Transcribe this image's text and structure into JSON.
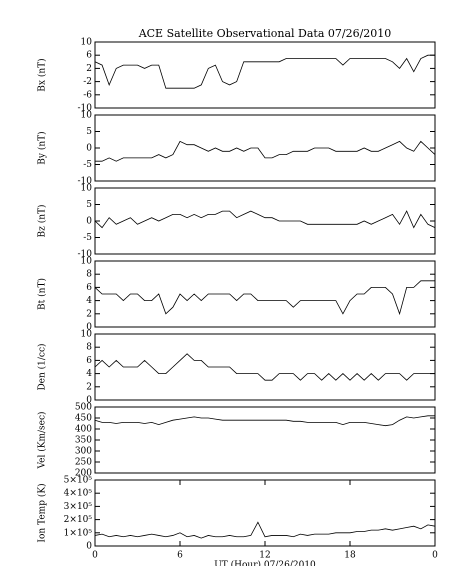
{
  "chart_data": [
    {
      "type": "line",
      "title": "ACE Satellite Observational Data   07/26/2010",
      "ylabel": "Bx (nT)",
      "color": "#000000",
      "xlim": [
        0,
        24
      ],
      "ylim": [
        -10,
        10
      ],
      "yticks": [
        -10,
        -6,
        -2,
        2,
        6,
        10
      ],
      "x": [
        0,
        0.5,
        1,
        1.5,
        2,
        2.5,
        3,
        3.5,
        4,
        4.5,
        5,
        5.5,
        6,
        6.5,
        7,
        7.5,
        8,
        8.5,
        9,
        9.5,
        10,
        10.5,
        11,
        11.5,
        12,
        12.5,
        13,
        13.5,
        14,
        14.5,
        15,
        15.5,
        16,
        16.5,
        17,
        17.5,
        18,
        18.5,
        19,
        19.5,
        20,
        20.5,
        21,
        21.5,
        22,
        22.5,
        23,
        23.5,
        24
      ],
      "values": [
        4,
        3,
        -3,
        2,
        3,
        3,
        3,
        2,
        3,
        3,
        -4,
        -4,
        -4,
        -4,
        -4,
        -3,
        2,
        3,
        -2,
        -3,
        -2,
        4,
        4,
        4,
        4,
        4,
        4,
        5,
        5,
        5,
        5,
        5,
        5,
        5,
        5,
        3,
        5,
        5,
        5,
        5,
        5,
        5,
        4,
        2,
        5,
        1,
        5,
        6,
        6
      ]
    },
    {
      "type": "line",
      "ylabel": "By (nT)",
      "color": "#000000",
      "xlim": [
        0,
        24
      ],
      "ylim": [
        -10,
        10
      ],
      "yticks": [
        -10,
        -5,
        0,
        5,
        10
      ],
      "x": [
        0,
        0.5,
        1,
        1.5,
        2,
        2.5,
        3,
        3.5,
        4,
        4.5,
        5,
        5.5,
        6,
        6.5,
        7,
        7.5,
        8,
        8.5,
        9,
        9.5,
        10,
        10.5,
        11,
        11.5,
        12,
        12.5,
        13,
        13.5,
        14,
        14.5,
        15,
        15.5,
        16,
        16.5,
        17,
        17.5,
        18,
        18.5,
        19,
        19.5,
        20,
        20.5,
        21,
        21.5,
        22,
        22.5,
        23,
        23.5,
        24
      ],
      "values": [
        -4,
        -4,
        -3,
        -4,
        -3,
        -3,
        -3,
        -3,
        -3,
        -2,
        -3,
        -2,
        2,
        1,
        1,
        0,
        -1,
        0,
        -1,
        -1,
        0,
        -1,
        0,
        0,
        -3,
        -3,
        -2,
        -2,
        -1,
        -1,
        -1,
        0,
        0,
        0,
        -1,
        -1,
        -1,
        -1,
        0,
        -1,
        -1,
        0,
        1,
        2,
        0,
        -1,
        2,
        0,
        -2
      ]
    },
    {
      "type": "line",
      "ylabel": "Bz (nT)",
      "color": "#000000",
      "xlim": [
        0,
        24
      ],
      "ylim": [
        -10,
        10
      ],
      "yticks": [
        -10,
        -5,
        0,
        5,
        10
      ],
      "x": [
        0,
        0.5,
        1,
        1.5,
        2,
        2.5,
        3,
        3.5,
        4,
        4.5,
        5,
        5.5,
        6,
        6.5,
        7,
        7.5,
        8,
        8.5,
        9,
        9.5,
        10,
        10.5,
        11,
        11.5,
        12,
        12.5,
        13,
        13.5,
        14,
        14.5,
        15,
        15.5,
        16,
        16.5,
        17,
        17.5,
        18,
        18.5,
        19,
        19.5,
        20,
        20.5,
        21,
        21.5,
        22,
        22.5,
        23,
        23.5,
        24
      ],
      "values": [
        0,
        -2,
        1,
        -1,
        0,
        1,
        -1,
        0,
        1,
        0,
        1,
        2,
        2,
        1,
        2,
        1,
        2,
        2,
        3,
        3,
        1,
        2,
        3,
        2,
        1,
        1,
        0,
        0,
        0,
        0,
        -1,
        -1,
        -1,
        -1,
        -1,
        -1,
        -1,
        -1,
        0,
        -1,
        0,
        1,
        2,
        -1,
        3,
        -2,
        2,
        -1,
        -2
      ]
    },
    {
      "type": "line",
      "ylabel": "Bt (nT)",
      "color": "#000000",
      "xlim": [
        0,
        24
      ],
      "ylim": [
        0,
        10
      ],
      "yticks": [
        0,
        2,
        4,
        6,
        8,
        10
      ],
      "x": [
        0,
        0.5,
        1,
        1.5,
        2,
        2.5,
        3,
        3.5,
        4,
        4.5,
        5,
        5.5,
        6,
        6.5,
        7,
        7.5,
        8,
        8.5,
        9,
        9.5,
        10,
        10.5,
        11,
        11.5,
        12,
        12.5,
        13,
        13.5,
        14,
        14.5,
        15,
        15.5,
        16,
        16.5,
        17,
        17.5,
        18,
        18.5,
        19,
        19.5,
        20,
        20.5,
        21,
        21.5,
        22,
        22.5,
        23,
        23.5,
        24
      ],
      "values": [
        6,
        5,
        5,
        5,
        4,
        5,
        5,
        4,
        4,
        5,
        2,
        3,
        5,
        4,
        5,
        4,
        5,
        5,
        5,
        5,
        4,
        5,
        5,
        4,
        4,
        4,
        4,
        4,
        3,
        4,
        4,
        4,
        4,
        4,
        4,
        2,
        4,
        5,
        5,
        6,
        6,
        6,
        5,
        2,
        6,
        6,
        7,
        7,
        7
      ]
    },
    {
      "type": "line",
      "ylabel": "Den (1/cc)",
      "color": "#000000",
      "xlim": [
        0,
        24
      ],
      "ylim": [
        0,
        10
      ],
      "yticks": [
        0,
        2,
        4,
        6,
        8,
        10
      ],
      "x": [
        0,
        0.5,
        1,
        1.5,
        2,
        2.5,
        3,
        3.5,
        4,
        4.5,
        5,
        5.5,
        6,
        6.5,
        7,
        7.5,
        8,
        8.5,
        9,
        9.5,
        10,
        10.5,
        11,
        11.5,
        12,
        12.5,
        13,
        13.5,
        14,
        14.5,
        15,
        15.5,
        16,
        16.5,
        17,
        17.5,
        18,
        18.5,
        19,
        19.5,
        20,
        20.5,
        21,
        21.5,
        22,
        22.5,
        23,
        23.5,
        24
      ],
      "values": [
        5,
        6,
        5,
        6,
        5,
        5,
        5,
        6,
        5,
        4,
        4,
        5,
        6,
        7,
        6,
        6,
        5,
        5,
        5,
        5,
        4,
        4,
        4,
        4,
        3,
        3,
        4,
        4,
        4,
        3,
        4,
        4,
        3,
        4,
        3,
        4,
        3,
        4,
        3,
        4,
        3,
        4,
        4,
        4,
        3,
        4,
        4,
        4,
        4
      ]
    },
    {
      "type": "line",
      "ylabel": "Vel (Km/sec)",
      "color": "#000000",
      "xlim": [
        0,
        24
      ],
      "ylim": [
        200,
        500
      ],
      "yticks": [
        200,
        250,
        300,
        350,
        400,
        450,
        500
      ],
      "x": [
        0,
        0.5,
        1,
        1.5,
        2,
        2.5,
        3,
        3.5,
        4,
        4.5,
        5,
        5.5,
        6,
        6.5,
        7,
        7.5,
        8,
        8.5,
        9,
        9.5,
        10,
        10.5,
        11,
        11.5,
        12,
        12.5,
        13,
        13.5,
        14,
        14.5,
        15,
        15.5,
        16,
        16.5,
        17,
        17.5,
        18,
        18.5,
        19,
        19.5,
        20,
        20.5,
        21,
        21.5,
        22,
        22.5,
        23,
        23.5,
        24
      ],
      "values": [
        440,
        430,
        430,
        425,
        430,
        430,
        430,
        425,
        430,
        420,
        430,
        440,
        445,
        450,
        455,
        450,
        450,
        445,
        440,
        440,
        440,
        440,
        440,
        440,
        440,
        440,
        440,
        440,
        435,
        435,
        430,
        430,
        430,
        430,
        430,
        420,
        430,
        430,
        430,
        425,
        420,
        415,
        420,
        440,
        455,
        450,
        455,
        460,
        460
      ]
    },
    {
      "type": "line",
      "ylabel": "Ion Temp (K)",
      "xlabel": "UT (Hour)   07/26/2010",
      "color": "#000000",
      "xlim": [
        0,
        24
      ],
      "ylim": [
        0,
        500000
      ],
      "yticks": [
        0,
        {
          "value": 100000,
          "label": "1×10⁵"
        },
        {
          "value": 200000,
          "label": "2×10⁵"
        },
        {
          "value": 300000,
          "label": "3×10⁵"
        },
        {
          "value": 400000,
          "label": "4×10⁵"
        },
        {
          "value": 500000,
          "label": "5×10⁵"
        }
      ],
      "xticks": [
        0,
        6,
        12,
        18,
        {
          "value": 24,
          "label": "0"
        }
      ],
      "x": [
        0,
        0.5,
        1,
        1.5,
        2,
        2.5,
        3,
        3.5,
        4,
        4.5,
        5,
        5.5,
        6,
        6.5,
        7,
        7.5,
        8,
        8.5,
        9,
        9.5,
        10,
        10.5,
        11,
        11.5,
        12,
        12.5,
        13,
        13.5,
        14,
        14.5,
        15,
        15.5,
        16,
        16.5,
        17,
        17.5,
        18,
        18.5,
        19,
        19.5,
        20,
        20.5,
        21,
        21.5,
        22,
        22.5,
        23,
        23.5,
        24
      ],
      "values": [
        80000,
        90000,
        70000,
        80000,
        70000,
        80000,
        70000,
        80000,
        90000,
        80000,
        70000,
        80000,
        100000,
        70000,
        80000,
        60000,
        80000,
        70000,
        70000,
        80000,
        70000,
        70000,
        80000,
        180000,
        70000,
        80000,
        80000,
        80000,
        70000,
        90000,
        80000,
        90000,
        90000,
        90000,
        100000,
        100000,
        100000,
        110000,
        110000,
        120000,
        120000,
        130000,
        120000,
        130000,
        140000,
        150000,
        130000,
        160000,
        150000
      ]
    }
  ]
}
